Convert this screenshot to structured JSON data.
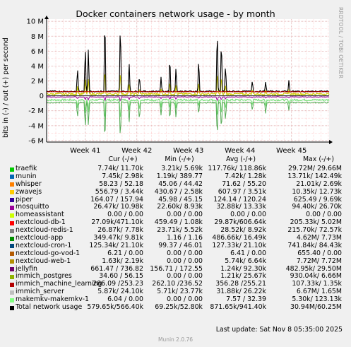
{
  "chart_data": {
    "type": "line",
    "title": "Docker containers network usage - by month",
    "ylabel": "bits in (-) / out (+) per second",
    "ylim": [
      -6200000.0,
      10300000.0
    ],
    "yticks": [
      {
        "v": 10000000.0,
        "label": "10 M"
      },
      {
        "v": 8000000.0,
        "label": "8 M"
      },
      {
        "v": 6000000.0,
        "label": "6 M"
      },
      {
        "v": 4000000.0,
        "label": "4 M"
      },
      {
        "v": 2000000.0,
        "label": "2 M"
      },
      {
        "v": 0,
        "label": "0"
      },
      {
        "v": -2000000.0,
        "label": "-2 M"
      },
      {
        "v": -4000000.0,
        "label": "-4 M"
      },
      {
        "v": -6000000.0,
        "label": "-6 M"
      }
    ],
    "xticks": [
      "Week 41",
      "Week 42",
      "Week 43",
      "Week 44",
      "Week 45"
    ],
    "grid": true,
    "series": [
      {
        "name": "Total network usage",
        "color": "#000000"
      },
      {
        "name": "nextcloud-db-1",
        "color": "#cc0000"
      },
      {
        "name": "mosquitto",
        "color": "#990099"
      },
      {
        "name": "zwavejs",
        "color": "#cccc00"
      },
      {
        "name": "makemkv-makemkv-1",
        "color": "#77dd77"
      }
    ],
    "spikes": [
      {
        "week": 40.85,
        "out": 3300000.0,
        "in": -2200000.0
      },
      {
        "week": 41.0,
        "out": 6400000.0,
        "in": -3600000.0
      },
      {
        "week": 41.06,
        "out": 6200000.0,
        "in": -3300000.0
      },
      {
        "week": 41.38,
        "out": 11200000.0,
        "in": -5800000.0
      },
      {
        "week": 41.68,
        "out": 10200000.0,
        "in": -5400000.0
      },
      {
        "week": 41.85,
        "out": 4200000.0,
        "in": -3100000.0
      },
      {
        "week": 42.05,
        "out": 2300000.0,
        "in": -2600000.0
      },
      {
        "week": 42.47,
        "out": 1900000.0,
        "in": -1700000.0
      },
      {
        "week": 42.64,
        "out": 5200000.0,
        "in": -2600000.0
      },
      {
        "week": 42.76,
        "out": 3600000.0,
        "in": -2400000.0
      },
      {
        "week": 43.2,
        "out": 4800000.0,
        "in": -1700000.0
      },
      {
        "week": 43.56,
        "out": 9200000.0,
        "in": -5100000.0
      },
      {
        "week": 43.64,
        "out": 7700000.0,
        "in": -4100000.0
      },
      {
        "week": 43.72,
        "out": 3800000.0,
        "in": -2600000.0
      },
      {
        "week": 44.24,
        "out": 1600000.0,
        "in": -1200000.0
      },
      {
        "week": 44.5,
        "out": 1400000.0,
        "in": -1600000.0
      },
      {
        "week": 44.95,
        "out": 1500000.0,
        "in": -1100000.0
      }
    ]
  },
  "side_label": "RRDTOOL / TOBI OETIKER",
  "legend": {
    "headers": [
      "Cur (-/+)",
      "Min (-/+)",
      "Avg (-/+)",
      "Max (-/+)"
    ],
    "rows": [
      {
        "name": "traefik",
        "color": "#00cc00",
        "cur": "7.74k/  11.70k",
        "min": "3.21k/   5.69k",
        "avg": "117.76k/ 118.86k",
        "max": "29.72M/  29.66M"
      },
      {
        "name": "munin",
        "color": "#0066b3",
        "cur": "7.45k/   2.98k",
        "min": "1.19k/ 389.77",
        "avg": "7.42k/   1.28k",
        "max": "13.71k/ 142.49k"
      },
      {
        "name": "whisper",
        "color": "#ff8000",
        "cur": "58.23 /  52.18",
        "min": "45.06 /  44.42",
        "avg": "71.62 /  55.20",
        "max": "21.01k/   2.69k"
      },
      {
        "name": "zwavejs",
        "color": "#ffcc00",
        "cur": "556.79 /   3.44k",
        "min": "430.67 /   2.58k",
        "avg": "607.97 /   3.51k",
        "max": "10.35k/  12.73k"
      },
      {
        "name": "piper",
        "color": "#330099",
        "cur": "164.07 / 157.94",
        "min": "45.98 /  45.15",
        "avg": "124.14 / 120.24",
        "max": "625.49 /   9.69k"
      },
      {
        "name": "mosquitto",
        "color": "#990099",
        "cur": "26.47k/  10.98k",
        "min": "22.60k/   8.93k",
        "avg": "32.88k/  13.33k",
        "max": "94.40k/  26.70k"
      },
      {
        "name": "homeassistant",
        "color": "#ccff00",
        "cur": "0.00 /   0.00",
        "min": "0.00 /   0.00",
        "avg": "0.00 /   0.00",
        "max": "0.00 /   0.00"
      },
      {
        "name": "nextcloud-db-1",
        "color": "#ff0000",
        "cur": "27.09k/471.10k",
        "min": "459.49 /   1.08k",
        "avg": "29.87k/606.64k",
        "max": "205.33k/   5.02M"
      },
      {
        "name": "nextcloud-redis-1",
        "color": "#808080",
        "cur": "26.87k/   7.78k",
        "min": "23.71k/   5.52k",
        "avg": "28.52k/   8.92k",
        "max": "215.70k/  72.57k"
      },
      {
        "name": "nextcloud-app",
        "color": "#008f00",
        "cur": "349.47k/   9.81k",
        "min": "1.16 /   1.16",
        "avg": "486.66k/  16.49k",
        "max": "4.62M/   7.73M"
      },
      {
        "name": "nextcloud-cron-1",
        "color": "#00487d",
        "cur": "125.34k/  21.10k",
        "min": "99.37 /  46.01",
        "avg": "127.33k/  21.10k",
        "max": "741.84k/  84.43k"
      },
      {
        "name": "nextcloud-go-vod-1",
        "color": "#b35a00",
        "cur": "6.21 /   0.00",
        "min": "0.00 /   0.00",
        "avg": "6.41 /   0.00",
        "max": "655.40 /   0.00"
      },
      {
        "name": "nextcloud-web-1",
        "color": "#b38f00",
        "cur": "1.63k/   2.19k",
        "min": "0.00 /   0.00",
        "avg": "5.74k/   6.64k",
        "max": "7.72M/   7.72M"
      },
      {
        "name": "jellyfin",
        "color": "#6b006b",
        "cur": "661.47 / 736.82",
        "min": "156.71 / 172.55",
        "avg": "1.24k/  92.30k",
        "max": "482.95k/  29.50M"
      },
      {
        "name": "immich_postgres",
        "color": "#8fb300",
        "cur": "34.60 /  56.15",
        "min": "0.00 /   0.00",
        "avg": "1.21k/  25.67k",
        "max": "930.04k/   6.66M"
      },
      {
        "name": "immich_machine_learning",
        "color": "#b30000",
        "cur": "286.09 /253.23",
        "min": "262.10 /236.52",
        "avg": "356.28 /255.21",
        "max": "107.33k/   1.35k"
      },
      {
        "name": "immich_server",
        "color": "#bebebe",
        "cur": "5.87k/  24.10k",
        "min": "5.71k/  23.77k",
        "avg": "31.88k/  26.22k",
        "max": "6.67M/   1.65M"
      },
      {
        "name": "makemkv-makemkv-1",
        "color": "#80ff80",
        "cur": "6.04 /   0.00",
        "min": "0.00 /   0.00",
        "avg": "7.57 /  32.39",
        "max": "5.30k/ 123.13k"
      },
      {
        "name": "Total network usage",
        "color": "#000000",
        "cur": "579.65k/566.40k",
        "min": "69.25k/52.80k",
        "avg": "871.65k/941.40k",
        "max": "30.94M/60.25M"
      }
    ]
  },
  "last_update": "Last update: Sat Nov  8 05:35:00 2025",
  "munin_version": "Munin 2.0.76"
}
